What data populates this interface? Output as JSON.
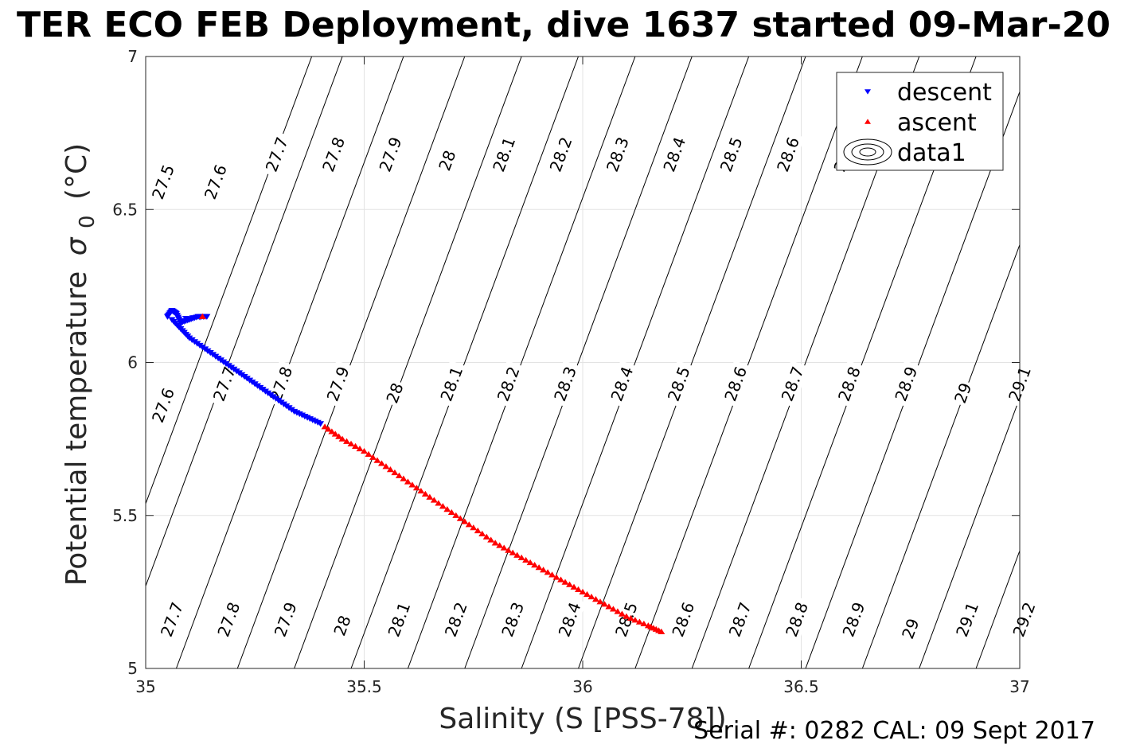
{
  "chart_data": {
    "type": "scatter",
    "title": "TER ECO FEB Deployment, dive 1637 started 09-Mar-20",
    "xlabel": "Salinity (S [PSS-78])",
    "ylabel": "Potential temperature",
    "ylabel_symbol": "σ",
    "ylabel_subscript": "0",
    "ylabel_unit": "(°C)",
    "footer": "Serial #: 0282  CAL: 09 Sept 2017",
    "xlim": [
      35,
      37
    ],
    "ylim": [
      5,
      7
    ],
    "x_ticks": [
      35,
      35.5,
      36,
      36.5,
      37
    ],
    "x_tick_labels": [
      "35",
      "35.5",
      "36",
      "36.5",
      "37"
    ],
    "y_ticks": [
      5,
      5.5,
      6,
      6.5,
      7
    ],
    "y_tick_labels": [
      "5",
      "5.5",
      "6",
      "6.5",
      "7"
    ],
    "grid": true,
    "legend_position": "top-right",
    "legend": [
      {
        "label": "descent",
        "color": "#0000ff",
        "marker": "triangle-down"
      },
      {
        "label": "ascent",
        "color": "#ff0000",
        "marker": "triangle-up"
      },
      {
        "label": "data1",
        "color": "#000000",
        "marker": "contour"
      }
    ],
    "series": [
      {
        "name": "descent",
        "color": "#0000ff",
        "marker": "triangle-down",
        "x": [
          35.05,
          35.06,
          35.07,
          35.08,
          35.1,
          35.12,
          35.14,
          35.06,
          35.08,
          35.1,
          35.13,
          35.16,
          35.19,
          35.22,
          35.25,
          35.28,
          35.31,
          35.34,
          35.37,
          35.4
        ],
        "y": [
          6.15,
          6.17,
          6.16,
          6.13,
          6.14,
          6.15,
          6.15,
          6.14,
          6.11,
          6.08,
          6.05,
          6.02,
          5.99,
          5.96,
          5.93,
          5.9,
          5.87,
          5.84,
          5.82,
          5.8
        ]
      },
      {
        "name": "ascent",
        "color": "#ff0000",
        "marker": "triangle-up",
        "x": [
          35.41,
          35.45,
          35.5,
          35.55,
          35.6,
          35.65,
          35.7,
          35.75,
          35.8,
          35.85,
          35.9,
          35.95,
          36.0,
          36.05,
          36.1,
          36.15,
          36.18,
          35.13
        ],
        "y": [
          5.79,
          5.75,
          5.71,
          5.66,
          5.61,
          5.56,
          5.51,
          5.46,
          5.41,
          5.37,
          5.33,
          5.29,
          5.25,
          5.21,
          5.17,
          5.14,
          5.12,
          6.15
        ]
      }
    ],
    "contour_lines": [
      {
        "value": "27.5",
        "bottom_x": 34.86
      },
      {
        "value": "27.6",
        "bottom_x": 34.93
      },
      {
        "value": "27.7",
        "bottom_x": 35.07
      },
      {
        "value": "27.8",
        "bottom_x": 35.21
      },
      {
        "value": "27.9",
        "bottom_x": 35.34
      },
      {
        "value": "28",
        "bottom_x": 35.47
      },
      {
        "value": "28.1",
        "bottom_x": 35.6
      },
      {
        "value": "28.2",
        "bottom_x": 35.73
      },
      {
        "value": "28.3",
        "bottom_x": 35.86
      },
      {
        "value": "28.4",
        "bottom_x": 35.99
      },
      {
        "value": "28.5",
        "bottom_x": 36.12
      },
      {
        "value": "28.6",
        "bottom_x": 36.25
      },
      {
        "value": "28.7",
        "bottom_x": 36.38
      },
      {
        "value": "28.8",
        "bottom_x": 36.51
      },
      {
        "value": "28.9",
        "bottom_x": 36.64
      },
      {
        "value": "29",
        "bottom_x": 36.77
      },
      {
        "value": "29.1",
        "bottom_x": 36.9
      },
      {
        "value": "29.2",
        "bottom_x": 37.03
      }
    ],
    "contour_labels": [
      {
        "text": "27.7",
        "x": 35.06,
        "y": 5.16
      },
      {
        "text": "27.8",
        "x": 35.19,
        "y": 5.16
      },
      {
        "text": "27.9",
        "x": 35.32,
        "y": 5.16
      },
      {
        "text": "28",
        "x": 35.45,
        "y": 5.14
      },
      {
        "text": "28.1",
        "x": 35.58,
        "y": 5.16
      },
      {
        "text": "28.2",
        "x": 35.71,
        "y": 5.16
      },
      {
        "text": "28.3",
        "x": 35.84,
        "y": 5.16
      },
      {
        "text": "28.4",
        "x": 35.97,
        "y": 5.16
      },
      {
        "text": "28.5",
        "x": 36.1,
        "y": 5.16
      },
      {
        "text": "28.6",
        "x": 36.23,
        "y": 5.16
      },
      {
        "text": "28.7",
        "x": 36.36,
        "y": 5.16
      },
      {
        "text": "28.8",
        "x": 36.49,
        "y": 5.16
      },
      {
        "text": "28.9",
        "x": 36.62,
        "y": 5.16
      },
      {
        "text": "29",
        "x": 36.75,
        "y": 5.13
      },
      {
        "text": "29.1",
        "x": 36.88,
        "y": 5.16
      },
      {
        "text": "29.2",
        "x": 37.01,
        "y": 5.16
      },
      {
        "text": "27.6",
        "x": 35.04,
        "y": 5.86
      },
      {
        "text": "27.7",
        "x": 35.18,
        "y": 5.93
      },
      {
        "text": "27.8",
        "x": 35.31,
        "y": 5.93
      },
      {
        "text": "27.9",
        "x": 35.44,
        "y": 5.93
      },
      {
        "text": "28",
        "x": 35.57,
        "y": 5.9
      },
      {
        "text": "28.1",
        "x": 35.7,
        "y": 5.93
      },
      {
        "text": "28.2",
        "x": 35.83,
        "y": 5.93
      },
      {
        "text": "28.3",
        "x": 35.96,
        "y": 5.93
      },
      {
        "text": "28.4",
        "x": 36.09,
        "y": 5.93
      },
      {
        "text": "28.5",
        "x": 36.22,
        "y": 5.93
      },
      {
        "text": "28.6",
        "x": 36.35,
        "y": 5.93
      },
      {
        "text": "28.7",
        "x": 36.48,
        "y": 5.93
      },
      {
        "text": "28.8",
        "x": 36.61,
        "y": 5.93
      },
      {
        "text": "28.9",
        "x": 36.74,
        "y": 5.93
      },
      {
        "text": "29",
        "x": 36.87,
        "y": 5.9
      },
      {
        "text": "29.1",
        "x": 37.0,
        "y": 5.93
      },
      {
        "text": "27.5",
        "x": 35.04,
        "y": 6.59
      },
      {
        "text": "27.6",
        "x": 35.16,
        "y": 6.59
      },
      {
        "text": "27.7",
        "x": 35.3,
        "y": 6.68
      },
      {
        "text": "27.8",
        "x": 35.43,
        "y": 6.68
      },
      {
        "text": "27.9",
        "x": 35.56,
        "y": 6.68
      },
      {
        "text": "28",
        "x": 35.69,
        "y": 6.66
      },
      {
        "text": "28.1",
        "x": 35.82,
        "y": 6.68
      },
      {
        "text": "28.2",
        "x": 35.95,
        "y": 6.68
      },
      {
        "text": "28.3",
        "x": 36.08,
        "y": 6.68
      },
      {
        "text": "28.4",
        "x": 36.21,
        "y": 6.68
      },
      {
        "text": "28.5",
        "x": 36.34,
        "y": 6.68
      },
      {
        "text": "28.6",
        "x": 36.47,
        "y": 6.68
      },
      {
        "text": "28.7",
        "x": 36.6,
        "y": 6.68
      }
    ]
  }
}
